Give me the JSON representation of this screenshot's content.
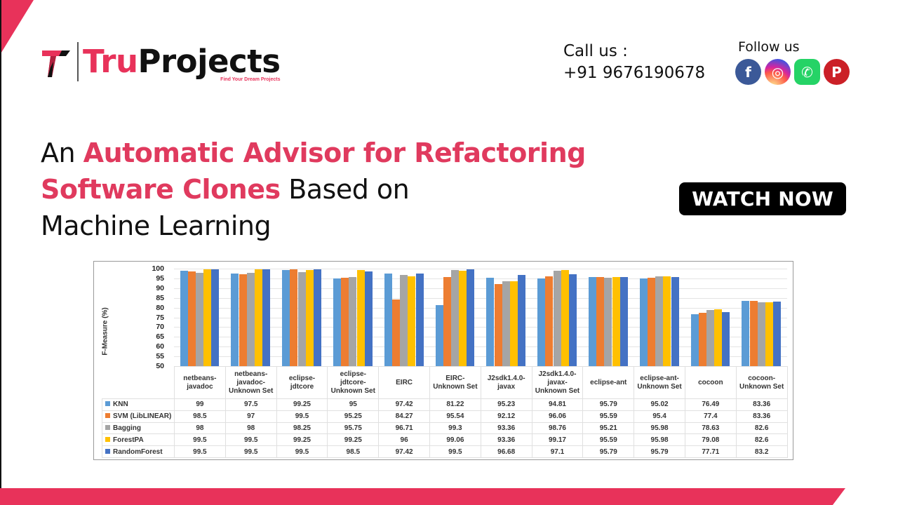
{
  "brand": {
    "name_part1": "Tru",
    "name_part2": "Projects",
    "tagline": "Find Your Dream Projects",
    "accent_color": "#e8325a"
  },
  "contact": {
    "call_label": "Call us :",
    "phone": "+91 9676190678"
  },
  "social": {
    "label": "Follow us",
    "items": [
      {
        "name": "facebook",
        "glyph": "f",
        "color": "#3b5998"
      },
      {
        "name": "instagram",
        "glyph": "◎",
        "color": "#d6249f"
      },
      {
        "name": "whatsapp",
        "glyph": "✆",
        "color": "#25d366"
      },
      {
        "name": "pinterest",
        "glyph": "P",
        "color": "#cb2027"
      }
    ]
  },
  "headline": {
    "part1": "An ",
    "highlight1": "Automatic Advisor for Refactoring",
    "highlight2": "Software Clones",
    "part2": " Based on",
    "part3": "Machine Learning"
  },
  "cta": {
    "watch_label": "WATCH NOW"
  },
  "chart_data": {
    "type": "bar",
    "title": "",
    "xlabel": "",
    "ylabel": "F-Measure (%)",
    "ylim": [
      50,
      100
    ],
    "yticks": [
      100,
      95,
      90,
      85,
      80,
      75,
      70,
      65,
      60,
      55,
      50
    ],
    "grid": true,
    "legend_position": "table-left",
    "categories": [
      "netbeans-javadoc",
      "netbeans-javadoc-Unknown Set",
      "eclipse-jdtcore",
      "eclipse-jdtcore-Unknown Set",
      "EIRC",
      "EIRC-Unknown Set",
      "J2sdk1.4.0-javax",
      "J2sdk1.4.0-javax-Unknown Set",
      "eclipse-ant",
      "eclipse-ant-Unknown Set",
      "cocoon",
      "cocoon-Unknown Set"
    ],
    "category_lines": [
      [
        "netbeans-",
        "javadoc"
      ],
      [
        "netbeans-",
        "javadoc-",
        "Unknown Set"
      ],
      [
        "eclipse-",
        "jdtcore"
      ],
      [
        "eclipse-",
        "jdtcore-",
        "Unknown Set"
      ],
      [
        "EIRC"
      ],
      [
        "EIRC-",
        "Unknown Set"
      ],
      [
        "J2sdk1.4.0-",
        "javax"
      ],
      [
        "J2sdk1.4.0-",
        "javax-",
        "Unknown Set"
      ],
      [
        "eclipse-ant"
      ],
      [
        "eclipse-ant-",
        "Unknown Set"
      ],
      [
        "cocoon"
      ],
      [
        "cocoon-",
        "Unknown Set"
      ]
    ],
    "series": [
      {
        "name": "KNN",
        "color": "#5b9bd5",
        "values": [
          99,
          97.5,
          99.25,
          95,
          97.42,
          81.22,
          95.23,
          94.81,
          95.79,
          95.02,
          76.49,
          83.36
        ]
      },
      {
        "name": "SVM (LibLINEAR)",
        "color": "#ed7d31",
        "values": [
          98.5,
          97,
          99.5,
          95.25,
          84.27,
          95.54,
          92.12,
          96.06,
          95.59,
          95.4,
          77.4,
          83.36
        ]
      },
      {
        "name": "Bagging",
        "color": "#a5a5a5",
        "values": [
          98,
          98,
          98.25,
          95.75,
          96.71,
          99.3,
          93.36,
          98.76,
          95.21,
          95.98,
          78.63,
          82.6
        ]
      },
      {
        "name": "ForestPA",
        "color": "#ffc000",
        "values": [
          99.5,
          99.5,
          99.25,
          99.25,
          96,
          99.06,
          93.36,
          99.17,
          95.59,
          95.98,
          79.08,
          82.6
        ]
      },
      {
        "name": "RandomForest",
        "color": "#4472c4",
        "values": [
          99.5,
          99.5,
          99.5,
          98.5,
          97.42,
          99.5,
          96.68,
          97.1,
          95.79,
          95.79,
          77.71,
          83.2
        ]
      }
    ]
  }
}
